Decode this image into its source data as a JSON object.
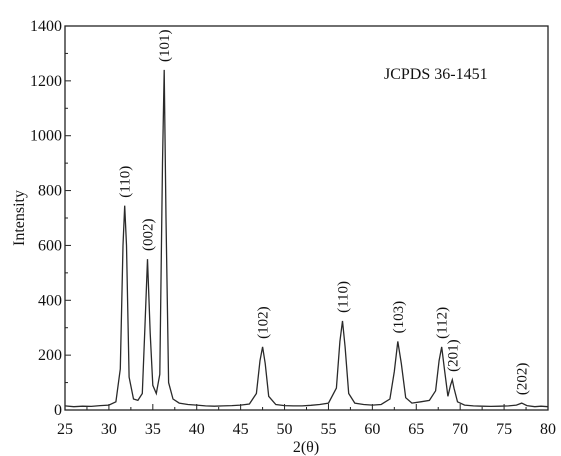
{
  "chart_data": {
    "type": "line",
    "title": "",
    "xlabel": "2(θ)",
    "ylabel": "Intensity",
    "xlim": [
      25,
      80
    ],
    "ylim": [
      0,
      1400
    ],
    "x_ticks": [
      25,
      30,
      35,
      40,
      45,
      50,
      55,
      60,
      65,
      70,
      75,
      80
    ],
    "y_ticks": [
      0,
      200,
      400,
      600,
      800,
      1000,
      1200,
      1400
    ],
    "x_tick_labels": [
      "25",
      "30",
      "35",
      "40",
      "45",
      "50",
      "55",
      "60",
      "65",
      "70",
      "75",
      "80"
    ],
    "y_tick_labels": [
      "0",
      "200",
      "400",
      "600",
      "800",
      "1000",
      "1200",
      "1400"
    ],
    "grid": false,
    "legend": "none",
    "reference_label": "JCPDS 36-1451",
    "baseline": 12,
    "peaks": [
      {
        "x": 31.8,
        "y": 745,
        "label": "(110)"
      },
      {
        "x": 34.4,
        "y": 550,
        "label": "(002)"
      },
      {
        "x": 36.3,
        "y": 1240,
        "label": "(101)"
      },
      {
        "x": 47.5,
        "y": 230,
        "label": "(102)"
      },
      {
        "x": 56.6,
        "y": 325,
        "label": "(110)"
      },
      {
        "x": 62.9,
        "y": 250,
        "label": "(103)"
      },
      {
        "x": 67.9,
        "y": 230,
        "label": "(112)"
      },
      {
        "x": 69.1,
        "y": 110,
        "label": "(201)"
      },
      {
        "x": 77.0,
        "y": 25,
        "label": "(202)"
      }
    ],
    "series": [
      {
        "x": [
          25.0,
          26.0,
          27.0,
          28.0,
          29.0,
          30.0,
          30.8,
          31.3,
          31.6,
          31.8,
          32.0,
          32.3,
          32.8,
          33.3,
          33.8,
          34.1,
          34.4,
          34.7,
          35.0,
          35.4,
          35.8,
          36.1,
          36.3,
          36.5,
          36.8,
          37.3,
          38.0,
          39.0,
          40.0,
          41.0,
          42.0,
          43.0,
          44.0,
          45.0,
          46.0,
          46.8,
          47.2,
          47.5,
          47.8,
          48.2,
          49.0,
          50.0,
          51.0,
          52.0,
          53.0,
          54.0,
          55.0,
          55.9,
          56.3,
          56.6,
          56.9,
          57.3,
          58.0,
          59.0,
          60.0,
          61.0,
          62.0,
          62.5,
          62.9,
          63.3,
          63.8,
          64.5,
          65.5,
          66.5,
          67.2,
          67.6,
          67.9,
          68.2,
          68.6,
          68.9,
          69.1,
          69.3,
          69.7,
          70.5,
          71.5,
          72.5,
          73.5,
          74.5,
          75.5,
          76.4,
          77.0,
          77.6,
          78.5,
          79.2,
          80.0
        ],
        "y": [
          15,
          12,
          14,
          13,
          16,
          18,
          30,
          150,
          600,
          745,
          600,
          120,
          40,
          35,
          60,
          300,
          550,
          280,
          90,
          60,
          130,
          900,
          1240,
          700,
          100,
          40,
          25,
          20,
          18,
          15,
          14,
          15,
          16,
          18,
          22,
          60,
          180,
          230,
          170,
          50,
          20,
          16,
          15,
          15,
          17,
          20,
          25,
          80,
          250,
          325,
          230,
          60,
          25,
          20,
          18,
          20,
          40,
          140,
          250,
          170,
          45,
          25,
          30,
          35,
          70,
          180,
          230,
          150,
          50,
          90,
          110,
          80,
          30,
          18,
          15,
          14,
          13,
          14,
          15,
          18,
          25,
          16,
          12,
          14,
          12
        ]
      }
    ]
  }
}
